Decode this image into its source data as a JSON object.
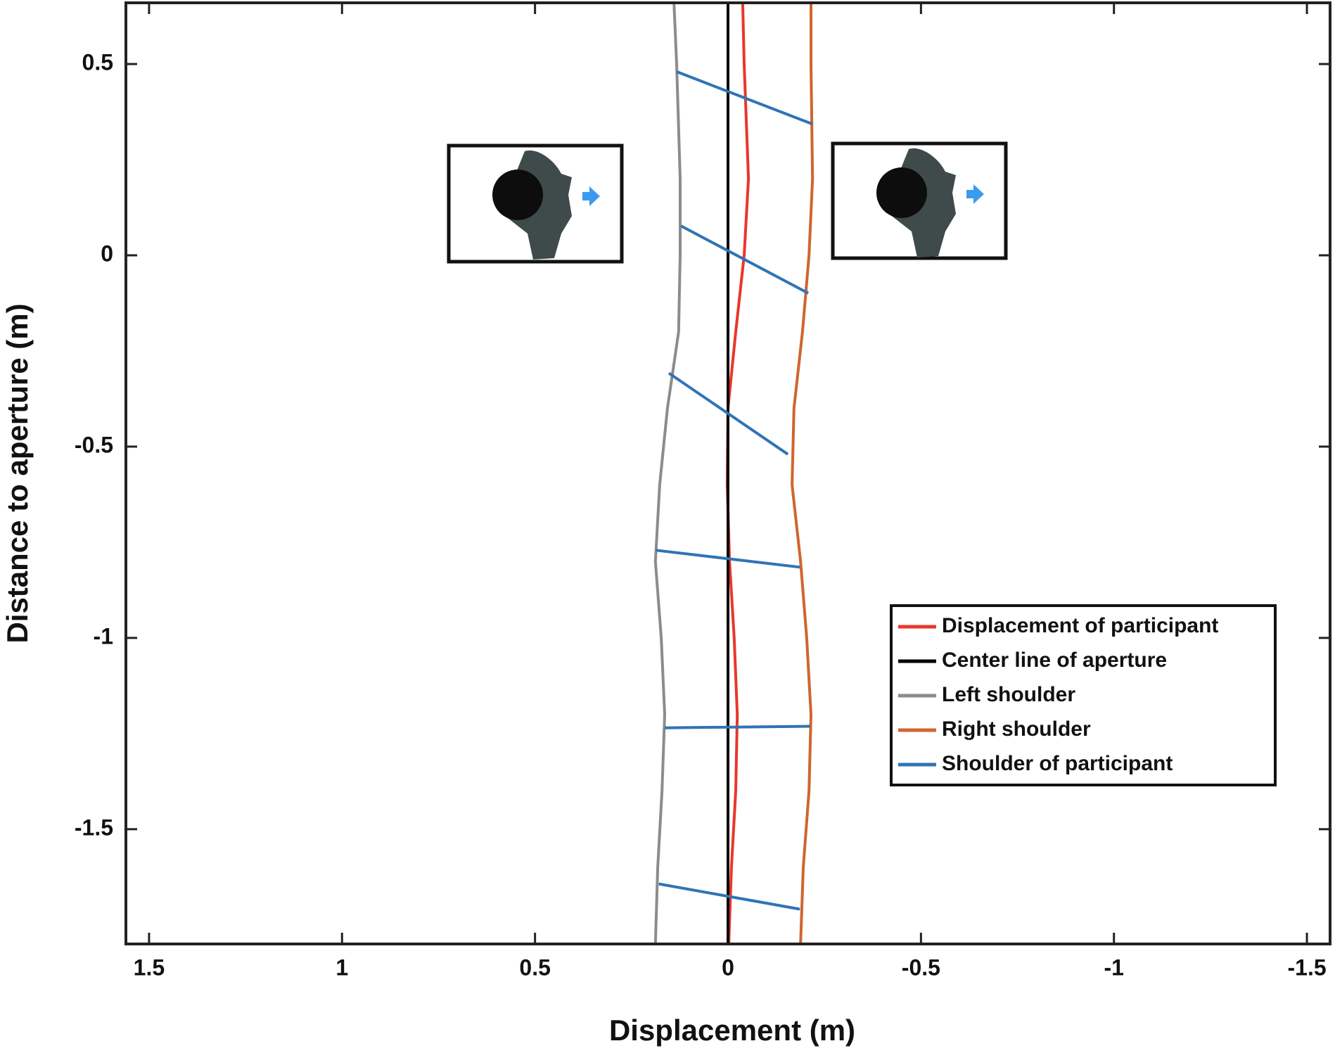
{
  "chart_data": {
    "type": "line",
    "xlabel": "Displacement (m)",
    "ylabel": "Distance to aperture (m)",
    "xlim": [
      1.56,
      -1.56
    ],
    "xticks": [
      1.5,
      1,
      0.5,
      0,
      -0.5,
      -1,
      -1.5
    ],
    "ylim": [
      -1.8,
      0.66
    ],
    "yticks": [
      0.5,
      0,
      -0.5,
      -1,
      -1.5
    ],
    "legend": "lower right",
    "series": [
      {
        "name": "Displacement of participant",
        "color": "#e8372b",
        "x": [
          -0.038,
          -0.042,
          -0.053,
          -0.042,
          -0.02,
          0,
          0.002,
          -0.004,
          -0.016,
          -0.024,
          -0.02,
          -0.009,
          -0.002
        ],
        "y": [
          0.66,
          0.5,
          0.2,
          0,
          -0.2,
          -0.4,
          -0.6,
          -0.8,
          -1.0,
          -1.2,
          -1.4,
          -1.6,
          -1.8
        ]
      },
      {
        "name": "Center line of aperture",
        "color": "#000000",
        "x": [
          0,
          0
        ],
        "y": [
          0.66,
          -1.8
        ]
      },
      {
        "name": "Left shoulder",
        "color": "#8c8c8c",
        "x": [
          0.14,
          0.133,
          0.124,
          0.124,
          0.128,
          0.157,
          0.177,
          0.188,
          0.173,
          0.164,
          0.171,
          0.182,
          0.188
        ],
        "y": [
          0.66,
          0.5,
          0.2,
          0,
          -0.2,
          -0.4,
          -0.6,
          -0.8,
          -1.0,
          -1.2,
          -1.4,
          -1.6,
          -1.8
        ]
      },
      {
        "name": "Right shoulder",
        "color": "#d0652e",
        "x": [
          -0.215,
          -0.215,
          -0.219,
          -0.21,
          -0.193,
          -0.171,
          -0.166,
          -0.188,
          -0.204,
          -0.215,
          -0.21,
          -0.195,
          -0.188
        ],
        "y": [
          0.66,
          0.5,
          0.2,
          0,
          -0.2,
          -0.4,
          -0.6,
          -0.8,
          -1.0,
          -1.2,
          -1.4,
          -1.6,
          -1.8
        ]
      },
      {
        "name": "Shoulder of participant",
        "color": "#2f74b5",
        "x": [
          0.133,
          -0.219,
          null,
          0.122,
          -0.208,
          null,
          0.153,
          -0.155,
          null,
          0.186,
          -0.186,
          null,
          0.164,
          -0.213,
          null,
          0.179,
          -0.186
        ],
        "y": [
          0.48,
          0.343,
          null,
          0.077,
          -0.099,
          null,
          -0.308,
          -0.52,
          null,
          -0.771,
          -0.815,
          null,
          -1.235,
          -1.231,
          null,
          -1.643,
          -1.709
        ]
      }
    ]
  }
}
